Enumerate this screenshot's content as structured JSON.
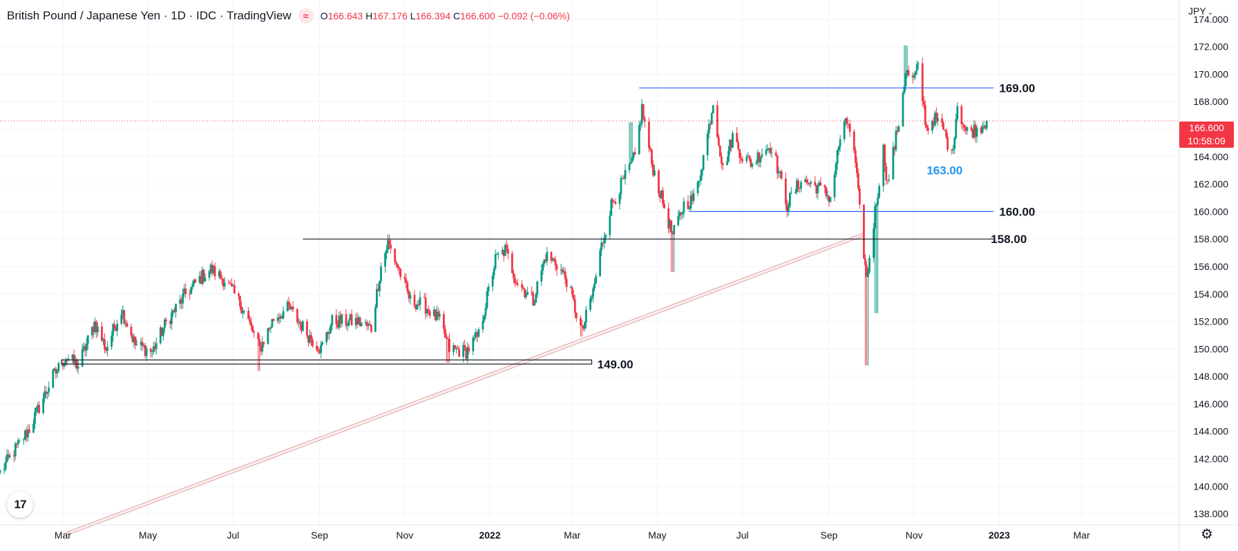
{
  "header": {
    "title": "British Pound / Japanese Yen · 1D · IDC · TradingView",
    "badge_icon": "waves-icon",
    "o_label": "O",
    "o_value": "166.643",
    "h_label": "H",
    "h_value": "167.176",
    "l_label": "L",
    "l_value": "166.394",
    "c_label": "C",
    "c_value": "166.600",
    "change": "−0.092 (−0.06%)"
  },
  "currency": {
    "label": "JPY",
    "icon": "chevron-down-icon"
  },
  "price_box": {
    "price": "166.600",
    "countdown": "10:58:09"
  },
  "colors": {
    "up": "#089981",
    "down": "#f23645",
    "blue": "#2962ff",
    "black": "#131722",
    "channel": "#e8b7b7"
  },
  "chart_data": {
    "type": "candlestick",
    "symbol": "GBPJPY",
    "interval": "1D",
    "ylim": [
      137.2,
      175.4
    ],
    "xlim": [
      "2021-01-15",
      "2023-05-10"
    ],
    "y_ticks": [
      138,
      140,
      142,
      144,
      146,
      148,
      150,
      152,
      154,
      156,
      158,
      160,
      162,
      164,
      166,
      168,
      170,
      172,
      174
    ],
    "y_tick_labels": [
      "138.000",
      "140.000",
      "142.000",
      "144.000",
      "146.000",
      "148.000",
      "150.000",
      "152.000",
      "154.000",
      "156.000",
      "158.000",
      "160.000",
      "162.000",
      "164.000",
      "166.000",
      "168.000",
      "170.000",
      "172.000",
      "174.000"
    ],
    "x_ticks": [
      {
        "date": "2021-03-01",
        "label": "Mar",
        "bold": false
      },
      {
        "date": "2021-05-01",
        "label": "May",
        "bold": false
      },
      {
        "date": "2021-07-01",
        "label": "Jul",
        "bold": false
      },
      {
        "date": "2021-09-01",
        "label": "Sep",
        "bold": false
      },
      {
        "date": "2021-11-01",
        "label": "Nov",
        "bold": false
      },
      {
        "date": "2022-01-01",
        "label": "2022",
        "bold": true
      },
      {
        "date": "2022-03-01",
        "label": "Mar",
        "bold": false
      },
      {
        "date": "2022-05-01",
        "label": "May",
        "bold": false
      },
      {
        "date": "2022-07-01",
        "label": "Jul",
        "bold": false
      },
      {
        "date": "2022-09-01",
        "label": "Sep",
        "bold": false
      },
      {
        "date": "2022-11-01",
        "label": "Nov",
        "bold": false
      },
      {
        "date": "2023-01-01",
        "label": "2023",
        "bold": true
      },
      {
        "date": "2023-03-01",
        "label": "Mar",
        "bold": false
      }
    ],
    "last_price": 166.6,
    "path": [
      [
        "2021-01-15",
        141.0
      ],
      [
        "2021-02-05",
        144.2
      ],
      [
        "2021-02-22",
        148.0
      ],
      [
        "2021-03-03",
        149.4
      ],
      [
        "2021-03-12",
        148.8
      ],
      [
        "2021-03-24",
        151.9
      ],
      [
        "2021-04-01",
        150.0
      ],
      [
        "2021-04-12",
        152.9
      ],
      [
        "2021-04-22",
        150.3
      ],
      [
        "2021-05-04",
        149.8
      ],
      [
        "2021-05-14",
        151.9
      ],
      [
        "2021-05-28",
        154.0
      ],
      [
        "2021-06-08",
        155.2
      ],
      [
        "2021-06-15",
        155.8
      ],
      [
        "2021-06-25",
        155.0
      ],
      [
        "2021-07-08",
        153.0
      ],
      [
        "2021-07-20",
        150.0
      ],
      [
        "2021-07-30",
        152.2
      ],
      [
        "2021-08-10",
        153.0
      ],
      [
        "2021-08-24",
        151.0
      ],
      [
        "2021-09-02",
        150.0
      ],
      [
        "2021-09-10",
        152.0
      ],
      [
        "2021-09-28",
        152.0
      ],
      [
        "2021-10-08",
        151.5
      ],
      [
        "2021-10-15",
        156.0
      ],
      [
        "2021-10-20",
        157.7
      ],
      [
        "2021-10-27",
        156.0
      ],
      [
        "2021-11-05",
        153.5
      ],
      [
        "2021-11-15",
        153.2
      ],
      [
        "2021-11-26",
        152.0
      ],
      [
        "2021-12-03",
        150.0
      ],
      [
        "2021-12-15",
        149.8
      ],
      [
        "2021-12-24",
        151.0
      ],
      [
        "2022-01-05",
        156.5
      ],
      [
        "2022-01-12",
        157.2
      ],
      [
        "2022-01-20",
        155.0
      ],
      [
        "2022-02-01",
        153.5
      ],
      [
        "2022-02-10",
        156.8
      ],
      [
        "2022-02-18",
        156.2
      ],
      [
        "2022-02-25",
        155.0
      ],
      [
        "2022-03-08",
        151.2
      ],
      [
        "2022-03-16",
        154.2
      ],
      [
        "2022-03-22",
        157.5
      ],
      [
        "2022-03-29",
        160.5
      ],
      [
        "2022-04-08",
        162.5
      ],
      [
        "2022-04-15",
        164.0
      ],
      [
        "2022-04-20",
        167.5
      ],
      [
        "2022-04-27",
        163.5
      ],
      [
        "2022-05-04",
        161.0
      ],
      [
        "2022-05-12",
        158.2
      ],
      [
        "2022-05-20",
        160.5
      ],
      [
        "2022-05-28",
        161.0
      ],
      [
        "2022-06-05",
        165.0
      ],
      [
        "2022-06-10",
        168.0
      ],
      [
        "2022-06-17",
        163.0
      ],
      [
        "2022-06-24",
        165.5
      ],
      [
        "2022-07-01",
        164.0
      ],
      [
        "2022-07-08",
        163.5
      ],
      [
        "2022-07-16",
        164.5
      ],
      [
        "2022-07-22",
        164.8
      ],
      [
        "2022-08-02",
        160.5
      ],
      [
        "2022-08-12",
        162.3
      ],
      [
        "2022-08-24",
        161.8
      ],
      [
        "2022-09-02",
        161.0
      ],
      [
        "2022-09-10",
        166.0
      ],
      [
        "2022-09-15",
        166.5
      ],
      [
        "2022-09-20",
        163.5
      ],
      [
        "2022-09-23",
        160.0
      ],
      [
        "2022-09-28",
        155.0
      ],
      [
        "2022-10-04",
        160.0
      ],
      [
        "2022-10-10",
        164.5
      ],
      [
        "2022-10-13",
        162.0
      ],
      [
        "2022-10-21",
        166.5
      ],
      [
        "2022-10-26",
        170.2
      ],
      [
        "2022-10-31",
        169.5
      ],
      [
        "2022-11-04",
        170.5
      ],
      [
        "2022-11-10",
        166.0
      ],
      [
        "2022-11-15",
        166.8
      ],
      [
        "2022-11-22",
        166.0
      ],
      [
        "2022-11-28",
        164.0
      ],
      [
        "2022-12-02",
        167.8
      ],
      [
        "2022-12-08",
        165.8
      ],
      [
        "2022-12-16",
        166.0
      ],
      [
        "2022-12-23",
        166.6
      ]
    ],
    "spikes": [
      {
        "date": "2021-03-11",
        "low": 148.6
      },
      {
        "date": "2021-07-19",
        "low": 148.4
      },
      {
        "date": "2021-12-02",
        "low": 149.0
      },
      {
        "date": "2022-03-07",
        "low": 150.9
      },
      {
        "date": "2022-04-12",
        "high": 166.5
      },
      {
        "date": "2022-05-12",
        "low": 155.6
      },
      {
        "date": "2022-09-28",
        "low": 148.8
      },
      {
        "date": "2022-10-05",
        "low": 152.6
      },
      {
        "date": "2022-10-26",
        "high": 172.1
      },
      {
        "date": "2022-11-29",
        "low": 164.2
      }
    ],
    "annotations": [
      {
        "type": "hline",
        "y": 169.0,
        "y_end": 169.0,
        "x_start": "2022-04-18",
        "x_end": "2022-12-28",
        "color": "#2962ff",
        "label": "169.00",
        "label_x": "2023-01-01",
        "label_color": "#131722"
      },
      {
        "type": "hline",
        "y": 160.0,
        "x_start": "2022-05-24",
        "x_end": "2022-12-28",
        "color": "#2962ff",
        "label": "160.00",
        "label_x": "2023-01-01",
        "label_color": "#131722"
      },
      {
        "type": "hline",
        "y": 158.0,
        "x_start": "2021-08-20",
        "x_end": "2022-12-28",
        "color": "#131722",
        "label": "158.00",
        "label_x": "2022-12-26",
        "label_color": "#131722"
      },
      {
        "type": "hrect",
        "y_top": 149.2,
        "y_bottom": 148.9,
        "x_start": "2021-02-28",
        "x_end": "2022-03-15",
        "color": "#131722",
        "label": "149.00",
        "label_x": "2022-03-19",
        "label_color": "#131722"
      },
      {
        "type": "label",
        "y": 163.0,
        "x": "2022-11-10",
        "label": "163.00",
        "label_color": "#2196f3"
      },
      {
        "type": "channel",
        "x_start": "2021-03-05",
        "y_start": 136.6,
        "x_end": "2022-09-25",
        "y_end": 158.3,
        "color": "#e8b7b7"
      }
    ]
  }
}
